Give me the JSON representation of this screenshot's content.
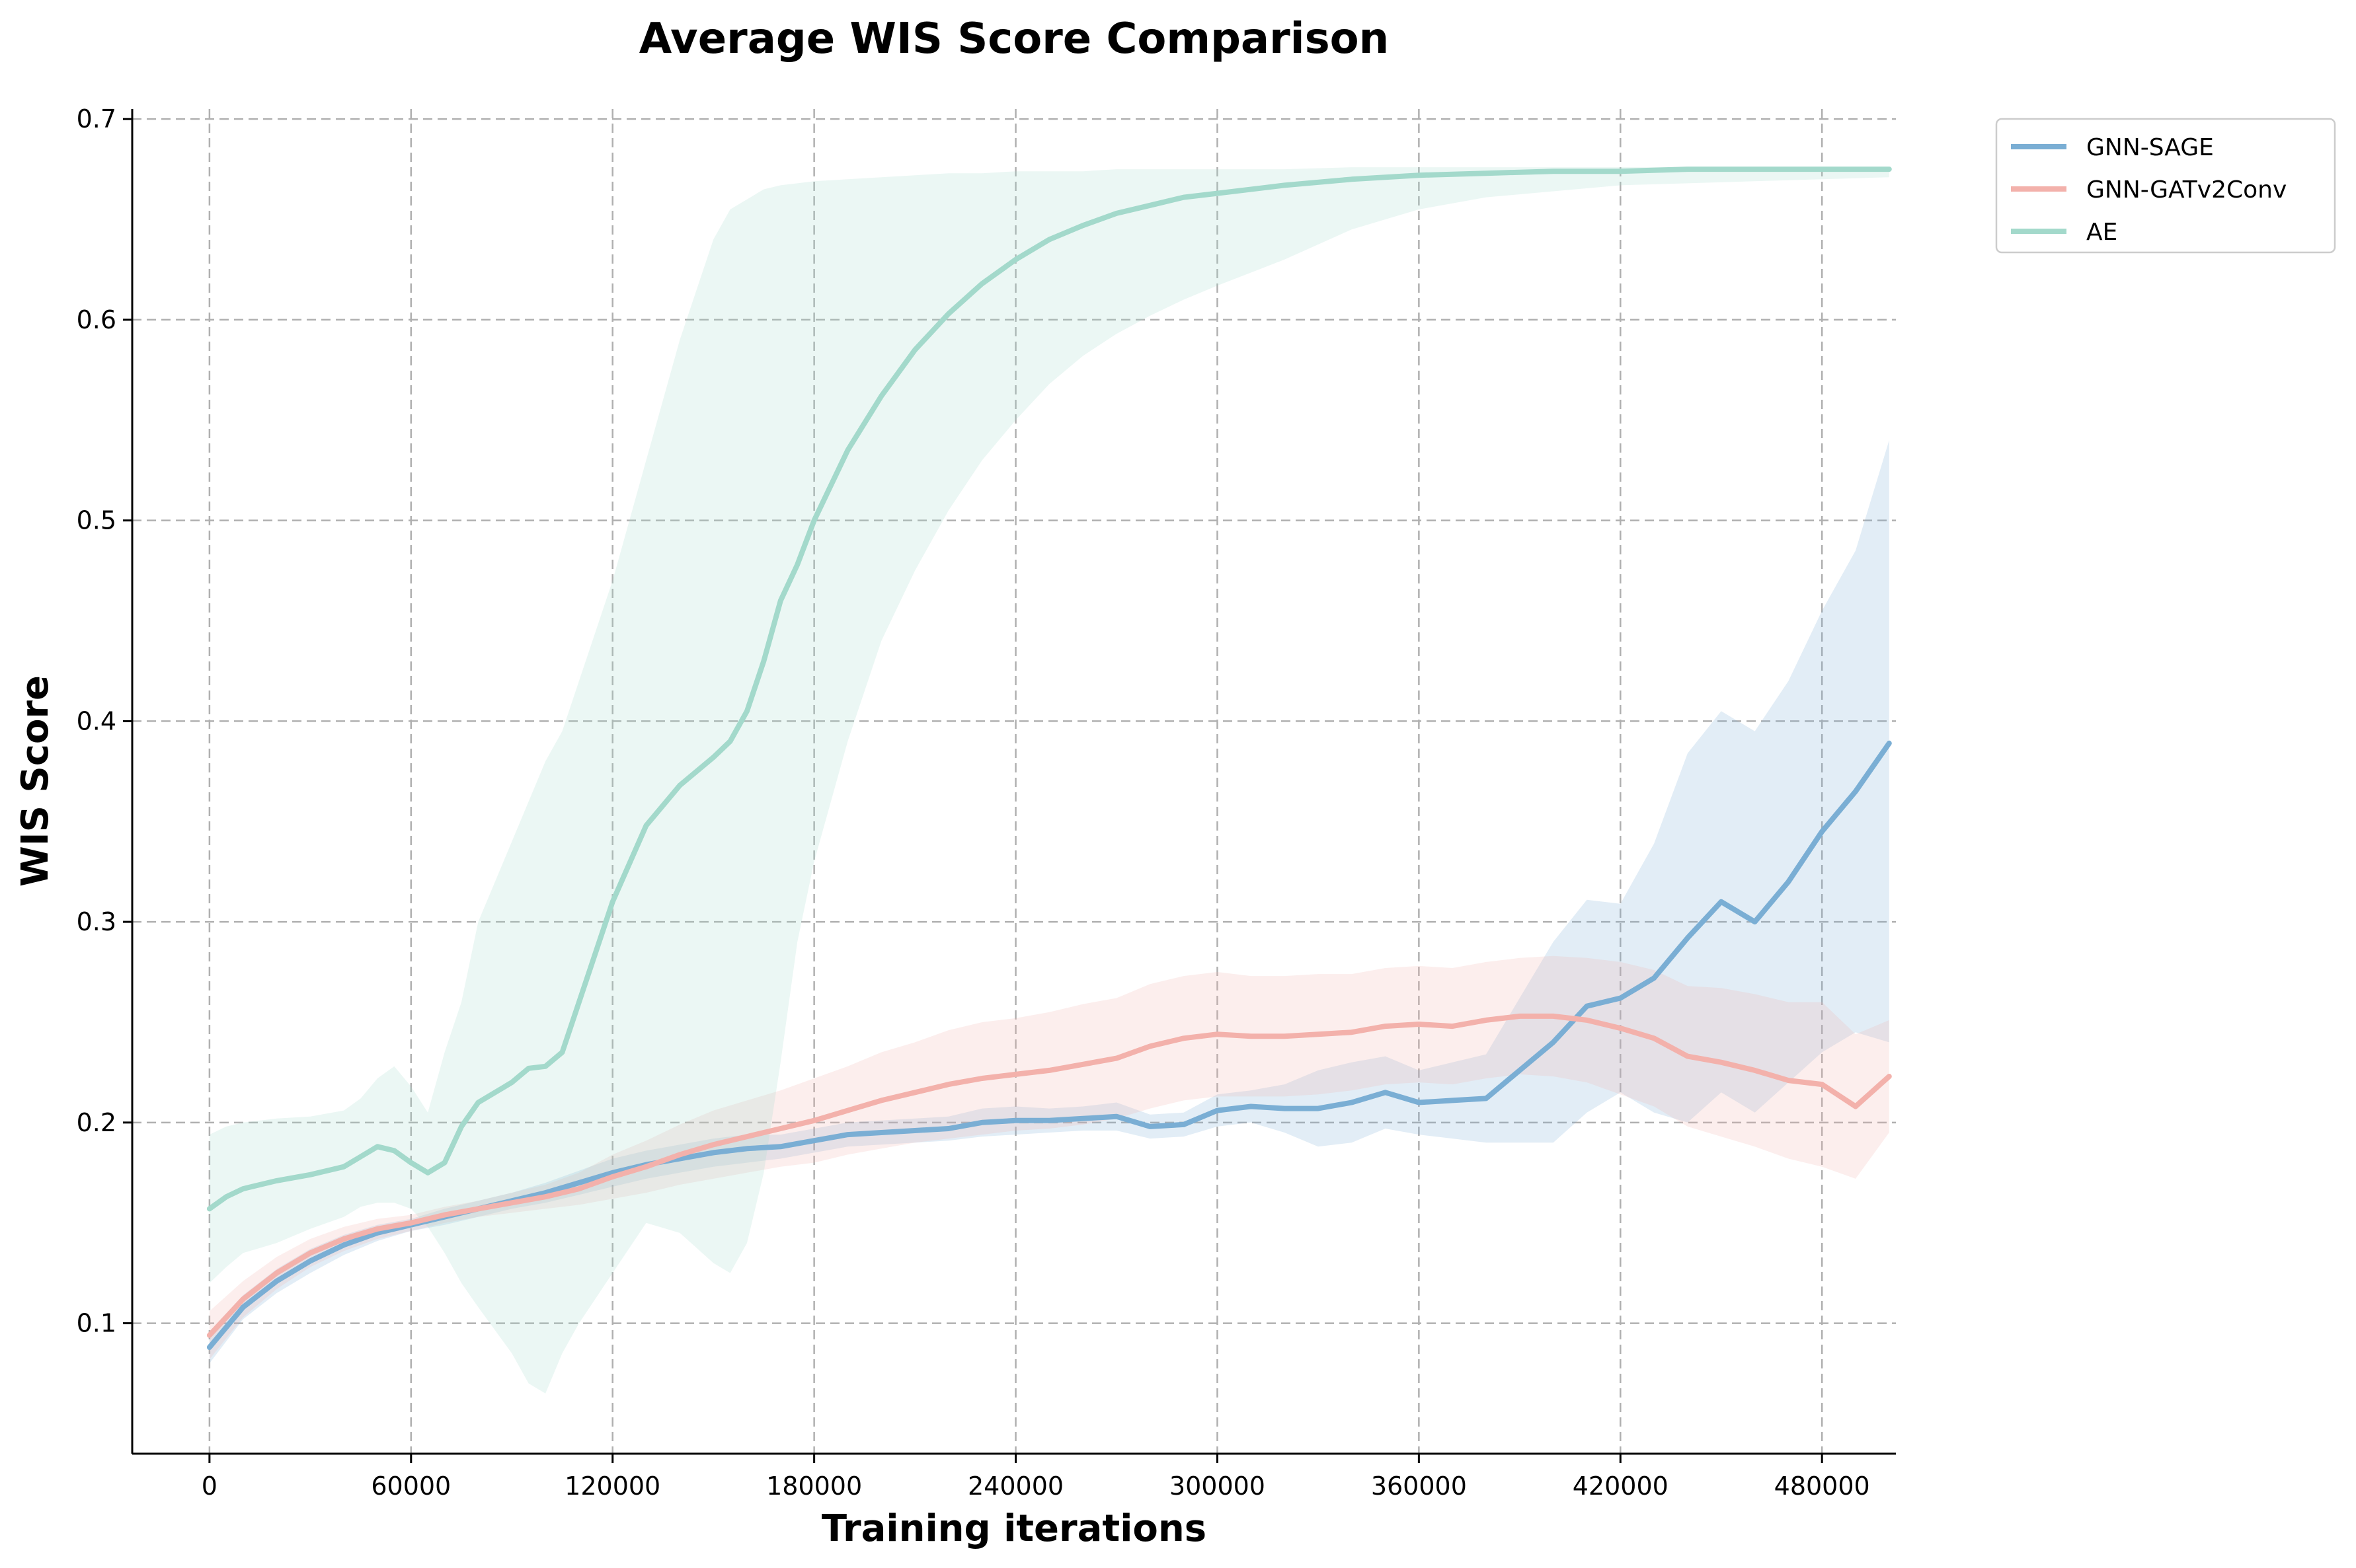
{
  "chart_data": {
    "type": "line",
    "title": "Average WIS Score Comparison",
    "xlabel": "Training iterations",
    "ylabel": "WIS Score",
    "xlim": [
      -23000,
      502000
    ],
    "ylim": [
      0.035,
      0.705
    ],
    "xticks": [
      0,
      60000,
      120000,
      180000,
      240000,
      300000,
      360000,
      420000,
      480000
    ],
    "xtick_labels": [
      "0",
      "60000",
      "120000",
      "180000",
      "240000",
      "300000",
      "360000",
      "420000",
      "480000"
    ],
    "yticks": [
      0.1,
      0.2,
      0.3,
      0.4,
      0.5,
      0.6,
      0.7
    ],
    "ytick_labels": [
      "0.1",
      "0.2",
      "0.3",
      "0.4",
      "0.5",
      "0.6",
      "0.7"
    ],
    "grid": true,
    "legend_position": "outside top-right",
    "series": [
      {
        "name": "GNN-SAGE",
        "color": "#7aaed4",
        "x": [
          0,
          10000,
          20000,
          30000,
          40000,
          50000,
          60000,
          70000,
          80000,
          90000,
          100000,
          110000,
          120000,
          130000,
          140000,
          150000,
          160000,
          170000,
          180000,
          190000,
          200000,
          210000,
          220000,
          230000,
          240000,
          250000,
          260000,
          270000,
          280000,
          290000,
          300000,
          310000,
          320000,
          330000,
          340000,
          350000,
          360000,
          370000,
          380000,
          390000,
          400000,
          410000,
          420000,
          430000,
          440000,
          450000,
          460000,
          470000,
          480000,
          490000,
          500000
        ],
        "y": [
          0.088,
          0.108,
          0.121,
          0.131,
          0.139,
          0.145,
          0.149,
          0.153,
          0.157,
          0.161,
          0.165,
          0.17,
          0.175,
          0.179,
          0.182,
          0.185,
          0.187,
          0.188,
          0.191,
          0.194,
          0.195,
          0.196,
          0.197,
          0.2,
          0.201,
          0.201,
          0.202,
          0.203,
          0.198,
          0.199,
          0.206,
          0.208,
          0.207,
          0.207,
          0.21,
          0.215,
          0.21,
          0.211,
          0.212,
          0.226,
          0.24,
          0.258,
          0.262,
          0.272,
          0.292,
          0.31,
          0.3,
          0.32,
          0.345,
          0.365,
          0.389
        ],
        "lower": [
          0.08,
          0.102,
          0.115,
          0.125,
          0.134,
          0.141,
          0.146,
          0.149,
          0.153,
          0.157,
          0.16,
          0.164,
          0.168,
          0.172,
          0.175,
          0.178,
          0.18,
          0.182,
          0.185,
          0.188,
          0.189,
          0.19,
          0.191,
          0.193,
          0.194,
          0.195,
          0.196,
          0.196,
          0.192,
          0.193,
          0.198,
          0.2,
          0.195,
          0.188,
          0.19,
          0.197,
          0.194,
          0.192,
          0.19,
          0.19,
          0.19,
          0.205,
          0.215,
          0.205,
          0.2,
          0.215,
          0.205,
          0.22,
          0.235,
          0.245,
          0.24
        ],
        "upper": [
          0.096,
          0.114,
          0.127,
          0.137,
          0.144,
          0.149,
          0.152,
          0.157,
          0.161,
          0.165,
          0.17,
          0.176,
          0.182,
          0.186,
          0.189,
          0.192,
          0.194,
          0.194,
          0.197,
          0.2,
          0.201,
          0.202,
          0.203,
          0.207,
          0.208,
          0.207,
          0.208,
          0.21,
          0.204,
          0.205,
          0.214,
          0.216,
          0.219,
          0.226,
          0.23,
          0.233,
          0.226,
          0.23,
          0.234,
          0.262,
          0.29,
          0.311,
          0.309,
          0.339,
          0.384,
          0.405,
          0.395,
          0.42,
          0.455,
          0.485,
          0.54
        ]
      },
      {
        "name": "GNN-GATv2Conv",
        "color": "#f3b1ab",
        "x": [
          0,
          10000,
          20000,
          30000,
          40000,
          50000,
          60000,
          70000,
          80000,
          90000,
          100000,
          110000,
          120000,
          130000,
          140000,
          150000,
          160000,
          170000,
          180000,
          190000,
          200000,
          210000,
          220000,
          230000,
          240000,
          250000,
          260000,
          270000,
          280000,
          290000,
          300000,
          310000,
          320000,
          330000,
          340000,
          350000,
          360000,
          370000,
          380000,
          390000,
          400000,
          410000,
          420000,
          430000,
          440000,
          450000,
          460000,
          470000,
          480000,
          490000,
          500000
        ],
        "y": [
          0.094,
          0.112,
          0.125,
          0.135,
          0.142,
          0.147,
          0.15,
          0.154,
          0.157,
          0.16,
          0.163,
          0.167,
          0.173,
          0.178,
          0.184,
          0.189,
          0.193,
          0.197,
          0.201,
          0.206,
          0.211,
          0.215,
          0.219,
          0.222,
          0.224,
          0.226,
          0.229,
          0.232,
          0.238,
          0.242,
          0.244,
          0.243,
          0.243,
          0.244,
          0.245,
          0.248,
          0.249,
          0.248,
          0.251,
          0.253,
          0.253,
          0.251,
          0.247,
          0.242,
          0.233,
          0.23,
          0.226,
          0.221,
          0.219,
          0.208,
          0.223
        ],
        "lower": [
          0.082,
          0.103,
          0.117,
          0.128,
          0.136,
          0.142,
          0.146,
          0.15,
          0.153,
          0.155,
          0.157,
          0.159,
          0.162,
          0.165,
          0.169,
          0.172,
          0.175,
          0.178,
          0.18,
          0.184,
          0.187,
          0.19,
          0.192,
          0.194,
          0.196,
          0.197,
          0.199,
          0.202,
          0.207,
          0.211,
          0.213,
          0.213,
          0.213,
          0.214,
          0.216,
          0.219,
          0.22,
          0.219,
          0.222,
          0.224,
          0.223,
          0.22,
          0.214,
          0.208,
          0.198,
          0.193,
          0.188,
          0.182,
          0.178,
          0.172,
          0.195
        ],
        "upper": [
          0.106,
          0.121,
          0.133,
          0.142,
          0.148,
          0.152,
          0.154,
          0.158,
          0.161,
          0.165,
          0.169,
          0.175,
          0.184,
          0.191,
          0.199,
          0.206,
          0.211,
          0.216,
          0.222,
          0.228,
          0.235,
          0.24,
          0.246,
          0.25,
          0.252,
          0.255,
          0.259,
          0.262,
          0.269,
          0.273,
          0.275,
          0.273,
          0.273,
          0.274,
          0.274,
          0.277,
          0.278,
          0.277,
          0.28,
          0.282,
          0.283,
          0.282,
          0.28,
          0.276,
          0.268,
          0.267,
          0.264,
          0.26,
          0.26,
          0.244,
          0.251
        ]
      },
      {
        "name": "AE",
        "color": "#a3d9cb",
        "x": [
          0,
          5000,
          10000,
          20000,
          30000,
          40000,
          45000,
          50000,
          55000,
          60000,
          65000,
          70000,
          75000,
          80000,
          90000,
          95000,
          100000,
          105000,
          110000,
          120000,
          130000,
          140000,
          150000,
          155000,
          160000,
          165000,
          170000,
          175000,
          180000,
          190000,
          200000,
          210000,
          220000,
          230000,
          240000,
          250000,
          260000,
          270000,
          280000,
          290000,
          300000,
          320000,
          340000,
          360000,
          380000,
          400000,
          420000,
          440000,
          460000,
          480000,
          500000
        ],
        "y": [
          0.157,
          0.163,
          0.167,
          0.171,
          0.174,
          0.178,
          0.183,
          0.188,
          0.186,
          0.18,
          0.175,
          0.18,
          0.198,
          0.21,
          0.22,
          0.227,
          0.228,
          0.235,
          0.26,
          0.31,
          0.348,
          0.368,
          0.382,
          0.39,
          0.405,
          0.43,
          0.46,
          0.478,
          0.5,
          0.535,
          0.562,
          0.585,
          0.603,
          0.618,
          0.63,
          0.64,
          0.647,
          0.653,
          0.657,
          0.661,
          0.663,
          0.667,
          0.67,
          0.672,
          0.673,
          0.674,
          0.674,
          0.675,
          0.675,
          0.675,
          0.675
        ],
        "lower": [
          0.12,
          0.128,
          0.135,
          0.14,
          0.147,
          0.153,
          0.158,
          0.16,
          0.16,
          0.157,
          0.148,
          0.135,
          0.12,
          0.108,
          0.085,
          0.07,
          0.065,
          0.085,
          0.1,
          0.125,
          0.15,
          0.145,
          0.13,
          0.125,
          0.14,
          0.175,
          0.23,
          0.29,
          0.33,
          0.39,
          0.44,
          0.475,
          0.505,
          0.53,
          0.55,
          0.568,
          0.582,
          0.593,
          0.602,
          0.61,
          0.617,
          0.63,
          0.645,
          0.655,
          0.661,
          0.664,
          0.667,
          0.668,
          0.669,
          0.67,
          0.671
        ],
        "upper": [
          0.194,
          0.198,
          0.2,
          0.202,
          0.203,
          0.206,
          0.212,
          0.222,
          0.228,
          0.218,
          0.205,
          0.235,
          0.26,
          0.3,
          0.34,
          0.36,
          0.38,
          0.395,
          0.42,
          0.47,
          0.53,
          0.59,
          0.64,
          0.655,
          0.66,
          0.665,
          0.667,
          0.668,
          0.669,
          0.67,
          0.671,
          0.672,
          0.673,
          0.673,
          0.674,
          0.674,
          0.674,
          0.675,
          0.675,
          0.675,
          0.675,
          0.675,
          0.676,
          0.676,
          0.676,
          0.676,
          0.676,
          0.676,
          0.676,
          0.676,
          0.676
        ]
      }
    ]
  }
}
